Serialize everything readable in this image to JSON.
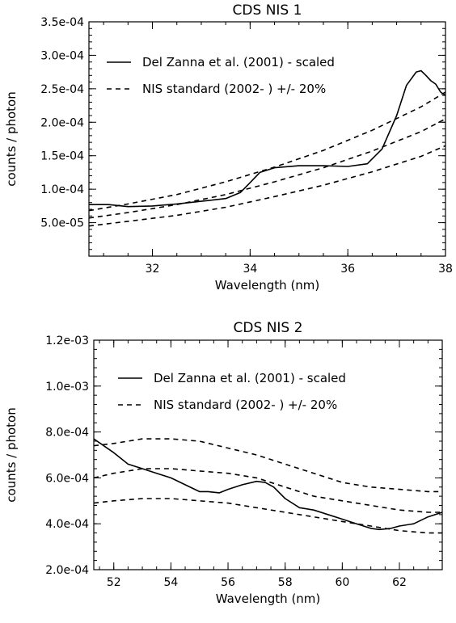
{
  "chart_data": [
    {
      "type": "line",
      "title": "CDS NIS 1",
      "xlabel": "Wavelength (nm)",
      "ylabel": "counts / photon",
      "xlim": [
        30.7,
        38.0
      ],
      "ylim": [
        0.0,
        0.00035
      ],
      "xticks": [
        32,
        34,
        36,
        38
      ],
      "xtick_labels": [
        "32",
        "34",
        "36",
        "38"
      ],
      "yticks": [
        5e-05,
        0.0001,
        0.00015,
        0.0002,
        0.00025,
        0.0003,
        0.00035
      ],
      "ytick_labels": [
        "5.0e-05",
        "1.0e-04",
        "1.5e-04",
        "2.0e-04",
        "2.5e-04",
        "3.0e-04",
        "3.5e-04"
      ],
      "legend_position": "top-left",
      "legend": [
        {
          "label": "Del Zanna et al. (2001)  - scaled",
          "style": "solid"
        },
        {
          "label": "NIS standard (2002- ) +/- 20%",
          "style": "dashed"
        }
      ],
      "series": [
        {
          "name": "Del Zanna et al. (2001)  - scaled",
          "style": "solid",
          "x": [
            30.7,
            31.1,
            31.5,
            32.0,
            32.5,
            33.0,
            33.5,
            33.8,
            34.0,
            34.2,
            34.5,
            35.0,
            35.5,
            36.0,
            36.4,
            36.7,
            37.0,
            37.2,
            37.4,
            37.5,
            37.6,
            37.7,
            37.8,
            37.9,
            38.0
          ],
          "y": [
            7.7e-05,
            7.7e-05,
            7.4e-05,
            7.5e-05,
            7.8e-05,
            8.2e-05,
            8.6e-05,
            9.5e-05,
            0.00011,
            0.000125,
            0.000132,
            0.000135,
            0.000135,
            0.000134,
            0.000138,
            0.00016,
            0.00021,
            0.000255,
            0.000275,
            0.000277,
            0.00027,
            0.000262,
            0.000257,
            0.000245,
            0.00024
          ]
        },
        {
          "name": "NIS standard (2002- ) +/- 20%",
          "style": "dashed",
          "x": [
            30.7,
            31.5,
            32.5,
            33.5,
            34.5,
            35.5,
            36.5,
            37.5,
            38.0
          ],
          "y": [
            6.8e-05,
            7.8e-05,
            9.2e-05,
            0.000111,
            0.000133,
            0.000158,
            0.000188,
            0.000223,
            0.000245
          ]
        },
        {
          "name": "",
          "style": "dashed",
          "x": [
            30.7,
            31.5,
            32.5,
            33.5,
            34.5,
            35.5,
            36.5,
            37.5,
            38.0
          ],
          "y": [
            5.7e-05,
            6.5e-05,
            7.7e-05,
            9.2e-05,
            0.000111,
            0.000132,
            0.000157,
            0.000186,
            0.000205
          ]
        },
        {
          "name": "",
          "style": "dashed",
          "x": [
            30.7,
            31.5,
            32.5,
            33.5,
            34.5,
            35.5,
            36.5,
            37.5,
            38.0
          ],
          "y": [
            4.5e-05,
            5.2e-05,
            6.1e-05,
            7.3e-05,
            8.9e-05,
            0.000106,
            0.000126,
            0.000149,
            0.000165
          ]
        }
      ]
    },
    {
      "type": "line",
      "title": "CDS NIS 2",
      "xlabel": "Wavelength (nm)",
      "ylabel": "counts / photon",
      "xlim": [
        51.3,
        63.5
      ],
      "ylim": [
        0.0002,
        0.0012
      ],
      "xticks": [
        52,
        54,
        56,
        58,
        60,
        62
      ],
      "xtick_labels": [
        "52",
        "54",
        "56",
        "58",
        "60",
        "62"
      ],
      "yticks": [
        0.0002,
        0.0004,
        0.0006,
        0.0008,
        0.001,
        0.0012
      ],
      "ytick_labels": [
        "2.0e-04",
        "4.0e-04",
        "6.0e-04",
        "8.0e-04",
        "1.0e-03",
        "1.2e-03"
      ],
      "legend_position": "top-right",
      "legend": [
        {
          "label": "Del Zanna et al. (2001)  - scaled",
          "style": "solid"
        },
        {
          "label": "NIS standard  (2002- ) +/- 20%",
          "style": "dashed"
        }
      ],
      "series": [
        {
          "name": "Del Zanna et al. (2001)  - scaled",
          "style": "solid",
          "x": [
            51.3,
            52.0,
            52.5,
            53.0,
            53.5,
            54.0,
            54.5,
            55.0,
            55.3,
            55.7,
            56.0,
            56.5,
            57.0,
            57.3,
            57.6,
            58.0,
            58.5,
            59.0,
            59.5,
            60.0,
            60.5,
            61.0,
            61.3,
            61.7,
            62.0,
            62.5,
            63.0,
            63.5
          ],
          "y": [
            0.00077,
            0.00071,
            0.00066,
            0.00064,
            0.00062,
            0.0006,
            0.00057,
            0.00054,
            0.00054,
            0.000535,
            0.00055,
            0.00057,
            0.000585,
            0.00058,
            0.00056,
            0.00051,
            0.00047,
            0.00046,
            0.00044,
            0.00042,
            0.0004,
            0.00038,
            0.000375,
            0.00038,
            0.00039,
            0.0004,
            0.00043,
            0.00045
          ]
        },
        {
          "name": "NIS standard  (2002- ) +/- 20%",
          "style": "dashed",
          "x": [
            51.3,
            52.0,
            53.0,
            54.0,
            55.0,
            56.0,
            57.0,
            58.0,
            59.0,
            60.0,
            61.0,
            62.0,
            63.0,
            63.5
          ],
          "y": [
            0.00074,
            0.00075,
            0.00077,
            0.00077,
            0.00076,
            0.00073,
            0.0007,
            0.00066,
            0.00062,
            0.00058,
            0.00056,
            0.00055,
            0.00054,
            0.00054
          ]
        },
        {
          "name": "",
          "style": "dashed",
          "x": [
            51.3,
            52.0,
            53.0,
            54.0,
            55.0,
            56.0,
            57.0,
            58.0,
            59.0,
            60.0,
            61.0,
            62.0,
            63.0,
            63.5
          ],
          "y": [
            0.0006,
            0.00062,
            0.00064,
            0.00064,
            0.00063,
            0.00062,
            0.0006,
            0.00056,
            0.00052,
            0.0005,
            0.00048,
            0.00046,
            0.00045,
            0.00045
          ]
        },
        {
          "name": "",
          "style": "dashed",
          "x": [
            51.3,
            52.0,
            53.0,
            54.0,
            55.0,
            56.0,
            57.0,
            58.0,
            59.0,
            60.0,
            61.0,
            62.0,
            63.0,
            63.5
          ],
          "y": [
            0.00049,
            0.0005,
            0.00051,
            0.00051,
            0.0005,
            0.00049,
            0.00047,
            0.00045,
            0.00043,
            0.00041,
            0.00039,
            0.00037,
            0.00036,
            0.00036
          ]
        }
      ]
    }
  ]
}
